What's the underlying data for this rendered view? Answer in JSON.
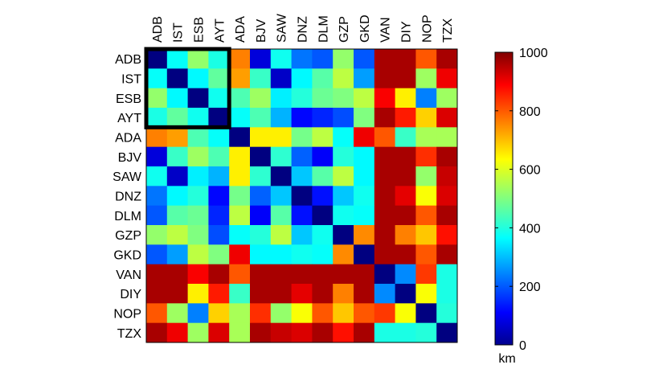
{
  "chart_data": {
    "type": "heatmap",
    "title": "",
    "labels": [
      "ADB",
      "IST",
      "ESB",
      "AYT",
      "ADA",
      "BJV",
      "SAW",
      "DNZ",
      "DLM",
      "GZP",
      "GKD",
      "VAN",
      "DIY",
      "NOP",
      "TZX"
    ],
    "values": [
      [
        0,
        380,
        520,
        400,
        750,
        90,
        390,
        240,
        210,
        520,
        210,
        960,
        960,
        790,
        960
      ],
      [
        380,
        0,
        370,
        470,
        720,
        430,
        70,
        370,
        460,
        560,
        280,
        960,
        960,
        530,
        890
      ],
      [
        520,
        370,
        0,
        390,
        450,
        530,
        360,
        410,
        480,
        500,
        560,
        880,
        640,
        250,
        530
      ],
      [
        400,
        470,
        390,
        0,
        380,
        450,
        300,
        130,
        160,
        200,
        500,
        960,
        850,
        670,
        910
      ],
      [
        750,
        720,
        450,
        380,
        0,
        640,
        640,
        490,
        560,
        380,
        890,
        790,
        430,
        540,
        540
      ],
      [
        90,
        430,
        530,
        450,
        640,
        0,
        420,
        220,
        120,
        410,
        370,
        960,
        960,
        830,
        960
      ],
      [
        390,
        70,
        360,
        300,
        640,
        420,
        0,
        320,
        460,
        560,
        370,
        960,
        960,
        520,
        930
      ],
      [
        240,
        370,
        410,
        130,
        490,
        220,
        320,
        0,
        140,
        320,
        390,
        960,
        900,
        620,
        910
      ],
      [
        210,
        460,
        480,
        160,
        560,
        120,
        460,
        140,
        0,
        390,
        380,
        960,
        960,
        790,
        960
      ],
      [
        520,
        560,
        500,
        200,
        380,
        410,
        560,
        320,
        390,
        0,
        740,
        960,
        750,
        680,
        860
      ],
      [
        210,
        280,
        560,
        500,
        890,
        370,
        370,
        390,
        380,
        740,
        0,
        960,
        960,
        790,
        960
      ],
      [
        960,
        960,
        880,
        960,
        790,
        960,
        960,
        960,
        960,
        960,
        960,
        0,
        260,
        820,
        400
      ],
      [
        960,
        960,
        640,
        850,
        430,
        960,
        960,
        900,
        960,
        750,
        960,
        260,
        0,
        620,
        400
      ],
      [
        790,
        530,
        250,
        670,
        540,
        830,
        520,
        620,
        790,
        680,
        790,
        820,
        620,
        0,
        410
      ],
      [
        960,
        890,
        530,
        910,
        540,
        960,
        930,
        910,
        960,
        860,
        960,
        400,
        400,
        410,
        0
      ]
    ],
    "colorbar": {
      "range": [
        0,
        1000
      ],
      "ticks": [
        "0",
        "200",
        "400",
        "600",
        "800",
        "1000"
      ],
      "unit_label": "km",
      "colormap": "jet"
    },
    "highlight_box": {
      "rows": [
        "ADB",
        "AYT"
      ],
      "cols": [
        "ADB",
        "AYT"
      ]
    },
    "colors": {
      "box": "#000000",
      "axis": "#000000"
    }
  }
}
